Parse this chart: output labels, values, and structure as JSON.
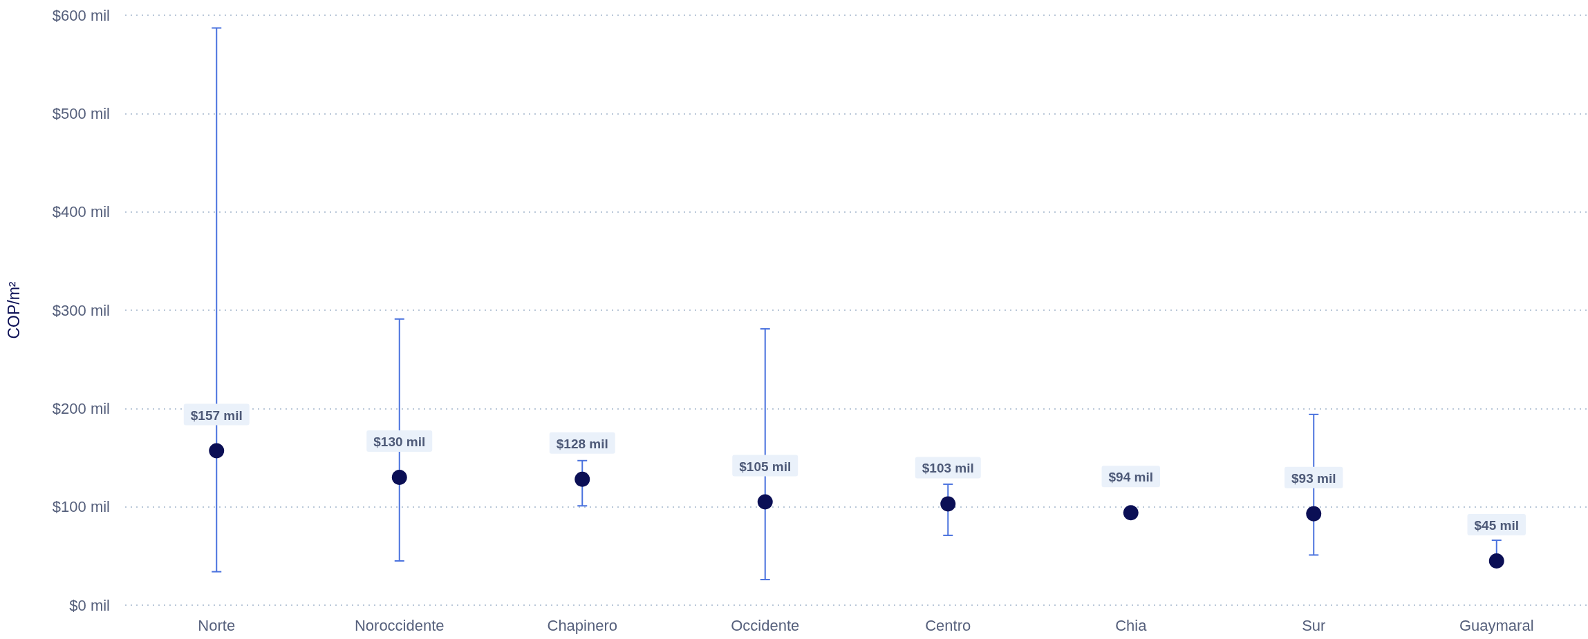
{
  "chart_data": {
    "type": "scatter",
    "ylabel": "COP/m²",
    "categories": [
      "Norte",
      "Noroccidente",
      "Chapinero",
      "Occidente",
      "Centro",
      "Chia",
      "Sur",
      "Guaymaral"
    ],
    "series": [
      {
        "color": "#0b0f55",
        "values": [
          157,
          130,
          128,
          105,
          103,
          94,
          93,
          45
        ],
        "errors": [
          [
            34,
            587
          ],
          [
            45,
            291
          ],
          [
            101,
            147
          ],
          [
            26,
            281
          ],
          [
            71,
            123
          ],
          null,
          [
            51,
            194
          ],
          [
            45,
            66
          ]
        ],
        "value_labels": [
          "$157 mil",
          "$130 mil",
          "$128 mil",
          "$105 mil",
          "$103 mil",
          "$94 mil",
          "$93 mil",
          "$45 mil"
        ]
      }
    ],
    "ylim": [
      0,
      600
    ],
    "yticks": [
      {
        "value": 0,
        "label": "$0 mil"
      },
      {
        "value": 100,
        "label": "$100 mil"
      },
      {
        "value": 200,
        "label": "$200 mil"
      },
      {
        "value": 300,
        "label": "$300 mil"
      },
      {
        "value": 400,
        "label": "$400 mil"
      },
      {
        "value": 500,
        "label": "$500 mil"
      },
      {
        "value": 600,
        "label": "$600 mil"
      }
    ],
    "grid": "y",
    "marker": "circle"
  }
}
